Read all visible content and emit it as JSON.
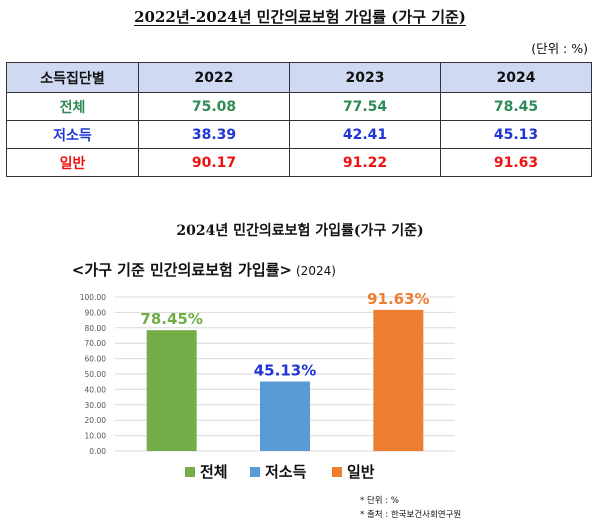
{
  "heading": "2022년-2024년 민간의료보험 가입률 (가구 기준)",
  "unit_label": "(단위 : %)",
  "table": {
    "header": [
      "소득집단별",
      "2022",
      "2023",
      "2024"
    ],
    "rows": [
      {
        "label": "전체",
        "values": [
          "75.08",
          "77.54",
          "78.45"
        ],
        "color": "#2e8b57"
      },
      {
        "label": "저소득",
        "values": [
          "38.39",
          "42.41",
          "45.13"
        ],
        "color": "#1f35d6"
      },
      {
        "label": "일반",
        "values": [
          "90.17",
          "91.22",
          "91.63"
        ],
        "color": "#ee1111"
      }
    ]
  },
  "section_title": "2024년 민간의료보험 가입률(가구 기준)",
  "chart_data": {
    "type": "bar",
    "title": "<가구 기준 민간의료보험 가입률>",
    "subtitle": "(2024)",
    "categories": [
      "전체",
      "저소득",
      "일반"
    ],
    "values": [
      78.45,
      45.13,
      91.63
    ],
    "value_labels": [
      "78.45%",
      "45.13%",
      "91.63%"
    ],
    "colors": [
      "#72ad47",
      "#5b9bd5",
      "#ed7d31"
    ],
    "label_colors": [
      "#70ad47",
      "#1f35d6",
      "#ed7d31"
    ],
    "ylim": [
      0,
      100
    ],
    "yticks": [
      "0.00",
      "10.00",
      "20.00",
      "30.00",
      "40.00",
      "50.00",
      "60.00",
      "70.00",
      "80.00",
      "90.00",
      "100.00"
    ],
    "grid": true,
    "legend": "bottom"
  },
  "notes": [
    "* 단위 : %",
    "* 출처 : 한국보건사회연구원"
  ]
}
